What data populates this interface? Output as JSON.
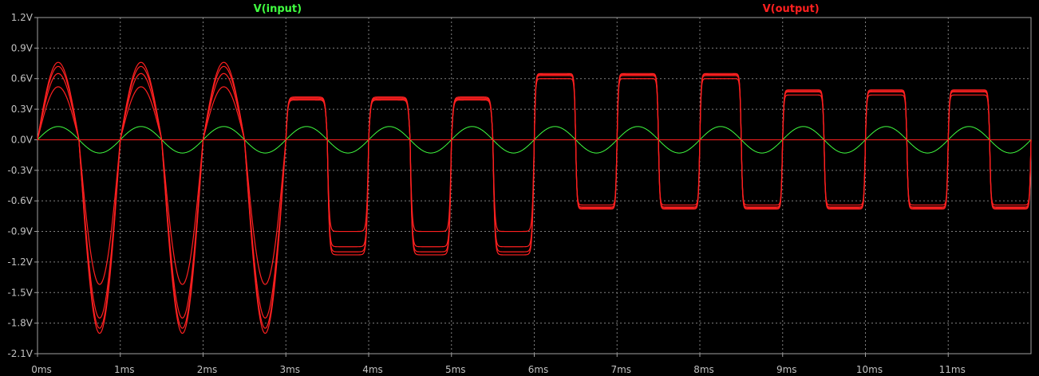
{
  "chart_data": {
    "type": "line",
    "title": "",
    "xlabel": "",
    "ylabel": "",
    "xlim": [
      0,
      12
    ],
    "ylim": [
      -2.1,
      1.2
    ],
    "x_unit": "ms",
    "y_unit": "V",
    "x_ticks": [
      "0ms",
      "1ms",
      "2ms",
      "3ms",
      "4ms",
      "5ms",
      "6ms",
      "7ms",
      "8ms",
      "9ms",
      "10ms",
      "11ms"
    ],
    "y_ticks": [
      "1.2V",
      "0.9V",
      "0.6V",
      "0.3V",
      "0.0V",
      "-0.3V",
      "-0.6V",
      "-0.9V",
      "-1.2V",
      "-1.5V",
      "-1.8V",
      "-2.1V"
    ],
    "legend": [
      "V(input)",
      "V(output)"
    ],
    "colors": {
      "input": "#40ff40",
      "output": "#ff2020",
      "grid": "#808080",
      "axis": "#a0a0a0",
      "zero": "#ff2020"
    },
    "series": [
      {
        "name": "V(input)",
        "shape": "sine",
        "frequency_khz": 1.0,
        "amplitude": 0.13,
        "offset": 0.0
      },
      {
        "name": "V(output)",
        "shape": "stepped sine (4 traces)",
        "frequency_khz": 1.0,
        "segments": [
          {
            "from_ms": 0,
            "to_ms": 3,
            "positive_peaks": [
              0.52,
              0.65,
              0.72,
              0.76
            ],
            "negative_peaks": [
              -1.42,
              -1.75,
              -1.85,
              -1.9
            ],
            "squareness": 0.0
          },
          {
            "from_ms": 3,
            "to_ms": 6,
            "positive_peaks": [
              0.39,
              0.4,
              0.41,
              0.42
            ],
            "negative_peaks": [
              -0.9,
              -1.05,
              -1.1,
              -1.13
            ],
            "squareness": 0.55
          },
          {
            "from_ms": 6,
            "to_ms": 9,
            "positive_peaks": [
              0.6,
              0.63,
              0.64,
              0.65
            ],
            "negative_peaks": [
              -0.64,
              -0.66,
              -0.67,
              -0.68
            ],
            "squareness": 0.85
          },
          {
            "from_ms": 9,
            "to_ms": 12,
            "positive_peaks": [
              0.44,
              0.47,
              0.48,
              0.49
            ],
            "negative_peaks": [
              -0.64,
              -0.66,
              -0.67,
              -0.68
            ],
            "squareness": 0.85
          }
        ]
      }
    ]
  }
}
